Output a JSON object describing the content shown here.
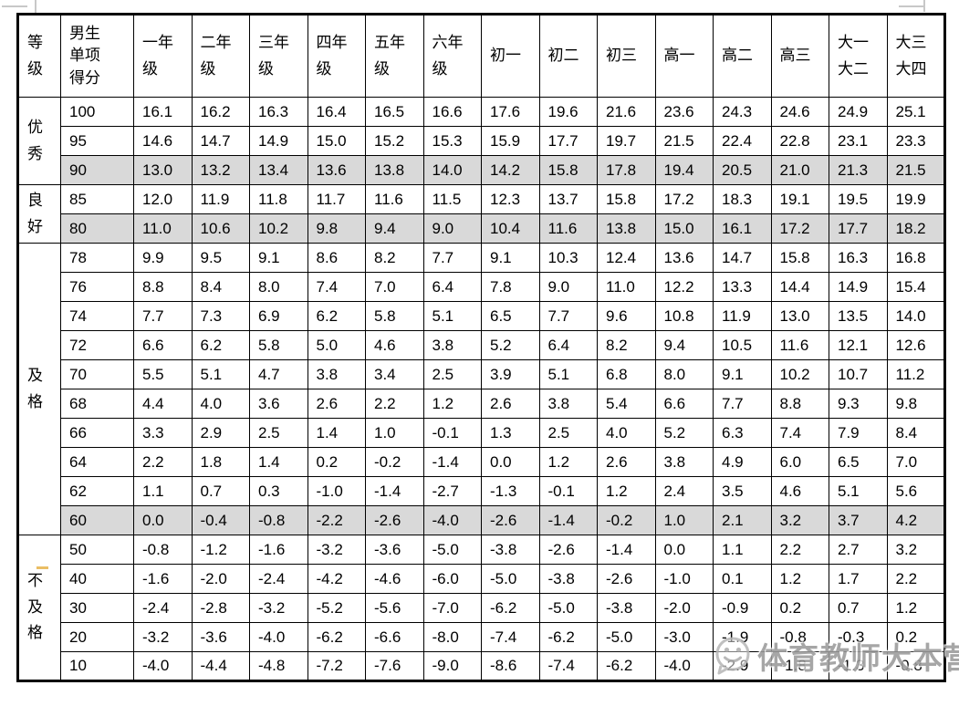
{
  "watermark": {
    "text": "体育教师大本营",
    "logo": "wechat-smiley-bubble-icon",
    "color": "#9a9a9a"
  },
  "table": {
    "shaded_color": "#d9d9d9",
    "header": {
      "grade": "等\n级",
      "score": "男生\n单项\n得分",
      "columns": [
        "一年\n级",
        "二年\n级",
        "三年\n级",
        "四年\n级",
        "五年\n级",
        "六年\n级",
        "初一",
        "初二",
        "初三",
        "高一",
        "高二",
        "高三",
        "大一\n大二",
        "大三\n大四"
      ]
    },
    "sections": [
      {
        "label": "优\n秀",
        "rows": [
          {
            "score": "100",
            "shaded": false,
            "values": [
              "16.1",
              "16.2",
              "16.3",
              "16.4",
              "16.5",
              "16.6",
              "17.6",
              "19.6",
              "21.6",
              "23.6",
              "24.3",
              "24.6",
              "24.9",
              "25.1"
            ]
          },
          {
            "score": "95",
            "shaded": false,
            "values": [
              "14.6",
              "14.7",
              "14.9",
              "15.0",
              "15.2",
              "15.3",
              "15.9",
              "17.7",
              "19.7",
              "21.5",
              "22.4",
              "22.8",
              "23.1",
              "23.3"
            ]
          },
          {
            "score": "90",
            "shaded": true,
            "values": [
              "13.0",
              "13.2",
              "13.4",
              "13.6",
              "13.8",
              "14.0",
              "14.2",
              "15.8",
              "17.8",
              "19.4",
              "20.5",
              "21.0",
              "21.3",
              "21.5"
            ]
          }
        ]
      },
      {
        "label": "良\n好",
        "rows": [
          {
            "score": "85",
            "shaded": false,
            "values": [
              "12.0",
              "11.9",
              "11.8",
              "11.7",
              "11.6",
              "11.5",
              "12.3",
              "13.7",
              "15.8",
              "17.2",
              "18.3",
              "19.1",
              "19.5",
              "19.9"
            ]
          },
          {
            "score": "80",
            "shaded": true,
            "values": [
              "11.0",
              "10.6",
              "10.2",
              "9.8",
              "9.4",
              "9.0",
              "10.4",
              "11.6",
              "13.8",
              "15.0",
              "16.1",
              "17.2",
              "17.7",
              "18.2"
            ]
          }
        ]
      },
      {
        "label": "及\n格",
        "rows": [
          {
            "score": "78",
            "shaded": false,
            "values": [
              "9.9",
              "9.5",
              "9.1",
              "8.6",
              "8.2",
              "7.7",
              "9.1",
              "10.3",
              "12.4",
              "13.6",
              "14.7",
              "15.8",
              "16.3",
              "16.8"
            ]
          },
          {
            "score": "76",
            "shaded": false,
            "values": [
              "8.8",
              "8.4",
              "8.0",
              "7.4",
              "7.0",
              "6.4",
              "7.8",
              "9.0",
              "11.0",
              "12.2",
              "13.3",
              "14.4",
              "14.9",
              "15.4"
            ]
          },
          {
            "score": "74",
            "shaded": false,
            "values": [
              "7.7",
              "7.3",
              "6.9",
              "6.2",
              "5.8",
              "5.1",
              "6.5",
              "7.7",
              "9.6",
              "10.8",
              "11.9",
              "13.0",
              "13.5",
              "14.0"
            ]
          },
          {
            "score": "72",
            "shaded": false,
            "values": [
              "6.6",
              "6.2",
              "5.8",
              "5.0",
              "4.6",
              "3.8",
              "5.2",
              "6.4",
              "8.2",
              "9.4",
              "10.5",
              "11.6",
              "12.1",
              "12.6"
            ]
          },
          {
            "score": "70",
            "shaded": false,
            "values": [
              "5.5",
              "5.1",
              "4.7",
              "3.8",
              "3.4",
              "2.5",
              "3.9",
              "5.1",
              "6.8",
              "8.0",
              "9.1",
              "10.2",
              "10.7",
              "11.2"
            ]
          },
          {
            "score": "68",
            "shaded": false,
            "values": [
              "4.4",
              "4.0",
              "3.6",
              "2.6",
              "2.2",
              "1.2",
              "2.6",
              "3.8",
              "5.4",
              "6.6",
              "7.7",
              "8.8",
              "9.3",
              "9.8"
            ]
          },
          {
            "score": "66",
            "shaded": false,
            "values": [
              "3.3",
              "2.9",
              "2.5",
              "1.4",
              "1.0",
              "-0.1",
              "1.3",
              "2.5",
              "4.0",
              "5.2",
              "6.3",
              "7.4",
              "7.9",
              "8.4"
            ]
          },
          {
            "score": "64",
            "shaded": false,
            "values": [
              "2.2",
              "1.8",
              "1.4",
              "0.2",
              "-0.2",
              "-1.4",
              "0.0",
              "1.2",
              "2.6",
              "3.8",
              "4.9",
              "6.0",
              "6.5",
              "7.0"
            ]
          },
          {
            "score": "62",
            "shaded": false,
            "values": [
              "1.1",
              "0.7",
              "0.3",
              "-1.0",
              "-1.4",
              "-2.7",
              "-1.3",
              "-0.1",
              "1.2",
              "2.4",
              "3.5",
              "4.6",
              "5.1",
              "5.6"
            ]
          },
          {
            "score": "60",
            "shaded": true,
            "values": [
              "0.0",
              "-0.4",
              "-0.8",
              "-2.2",
              "-2.6",
              "-4.0",
              "-2.6",
              "-1.4",
              "-0.2",
              "1.0",
              "2.1",
              "3.2",
              "3.7",
              "4.2"
            ]
          }
        ]
      },
      {
        "label": "不\n及\n格",
        "rows": [
          {
            "score": "50",
            "shaded": false,
            "values": [
              "-0.8",
              "-1.2",
              "-1.6",
              "-3.2",
              "-3.6",
              "-5.0",
              "-3.8",
              "-2.6",
              "-1.4",
              "0.0",
              "1.1",
              "2.2",
              "2.7",
              "3.2"
            ]
          },
          {
            "score": "40",
            "shaded": false,
            "values": [
              "-1.6",
              "-2.0",
              "-2.4",
              "-4.2",
              "-4.6",
              "-6.0",
              "-5.0",
              "-3.8",
              "-2.6",
              "-1.0",
              "0.1",
              "1.2",
              "1.7",
              "2.2"
            ]
          },
          {
            "score": "30",
            "shaded": false,
            "values": [
              "-2.4",
              "-2.8",
              "-3.2",
              "-5.2",
              "-5.6",
              "-7.0",
              "-6.2",
              "-5.0",
              "-3.8",
              "-2.0",
              "-0.9",
              "0.2",
              "0.7",
              "1.2"
            ]
          },
          {
            "score": "20",
            "shaded": false,
            "values": [
              "-3.2",
              "-3.6",
              "-4.0",
              "-6.2",
              "-6.6",
              "-8.0",
              "-7.4",
              "-6.2",
              "-5.0",
              "-3.0",
              "-1.9",
              "-0.8",
              "-0.3",
              "0.2"
            ]
          },
          {
            "score": "10",
            "shaded": false,
            "values": [
              "-4.0",
              "-4.4",
              "-4.8",
              "-7.2",
              "-7.6",
              "-9.0",
              "-8.6",
              "-7.4",
              "-6.2",
              "-4.0",
              "-2.9",
              "-1.8",
              "-1.3",
              "-0.8"
            ]
          }
        ]
      }
    ]
  }
}
